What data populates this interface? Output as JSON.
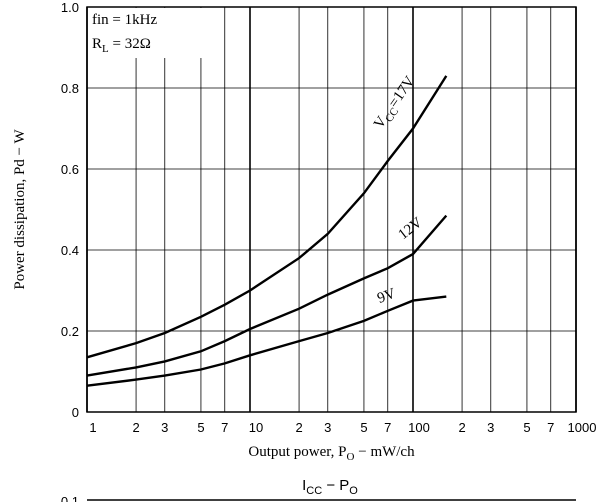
{
  "chart_data": [
    {
      "type": "line",
      "annotations": [
        {
          "parts": [
            "fin = 1kHz"
          ]
        },
        {
          "parts": [
            "R",
            "L",
            " = 32Ω"
          ]
        }
      ],
      "x_label_parts": [
        "Output power, P",
        "O",
        "  −  mW/ch"
      ],
      "y_label": "Power dissipation, Pd  −  W",
      "x": [
        1,
        2,
        3,
        5,
        7,
        10,
        20,
        30,
        50,
        70,
        100,
        160
      ],
      "series": [
        {
          "label_parts": [
            "V",
            "CC",
            "=17V"
          ],
          "color": "#000000",
          "values": [
            0.135,
            0.17,
            0.195,
            0.235,
            0.265,
            0.3,
            0.38,
            0.44,
            0.54,
            0.62,
            0.7,
            0.83
          ]
        },
        {
          "label_parts": [
            "12V"
          ],
          "color": "#000000",
          "values": [
            0.09,
            0.11,
            0.125,
            0.15,
            0.175,
            0.205,
            0.255,
            0.29,
            0.33,
            0.355,
            0.39,
            0.485
          ]
        },
        {
          "label_parts": [
            "9V"
          ],
          "color": "#000000",
          "values": [
            0.065,
            0.08,
            0.09,
            0.105,
            0.12,
            0.14,
            0.175,
            0.195,
            0.225,
            0.25,
            0.275,
            0.285
          ]
        }
      ],
      "xscale": "log",
      "xlim": [
        1,
        1000
      ],
      "xticks": [
        1,
        2,
        3,
        5,
        7,
        10,
        {
          "value": 20,
          "label": "2"
        },
        {
          "value": 30,
          "label": "3"
        },
        {
          "value": 50,
          "label": "5"
        },
        {
          "value": 70,
          "label": "7"
        },
        100,
        {
          "value": 200,
          "label": "2"
        },
        {
          "value": 300,
          "label": "3"
        },
        {
          "value": 500,
          "label": "5"
        },
        {
          "value": 700,
          "label": "7"
        },
        1000
      ],
      "ylim": [
        0,
        1
      ],
      "yticks": [
        0,
        0.2,
        0.4,
        0.6,
        0.8,
        {
          "value": 1,
          "label": "1.0"
        }
      ],
      "grid": true
    },
    {
      "type": "line",
      "title_parts": [
        "I",
        "CC",
        " − P",
        "O"
      ],
      "yticks": [
        0.1
      ]
    }
  ]
}
